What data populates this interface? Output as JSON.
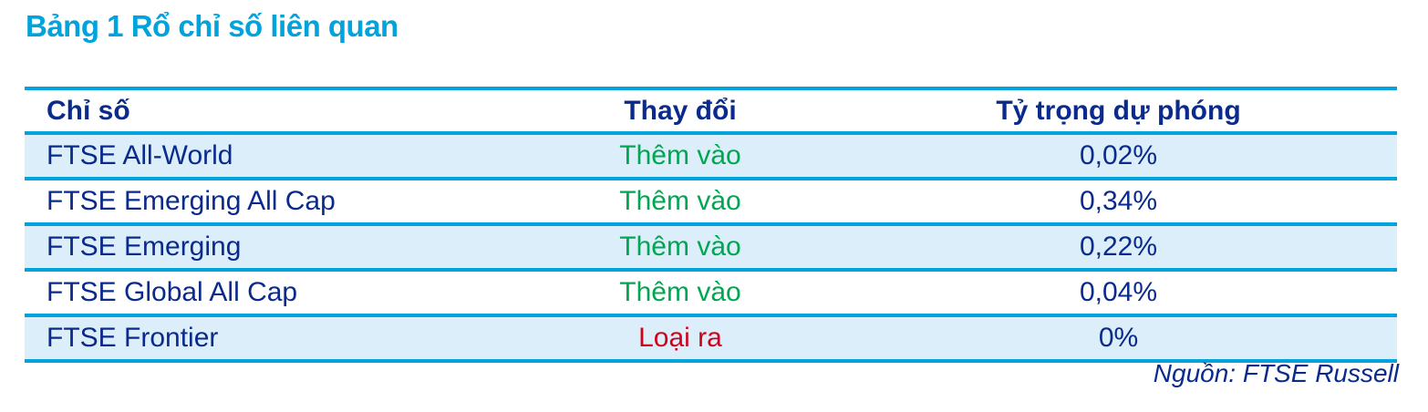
{
  "title": "Bảng 1 Rổ chỉ số liên quan",
  "table": {
    "headers": [
      "Chỉ số",
      "Thay đổi",
      "Tỷ trọng dự phóng"
    ],
    "rows": [
      {
        "index": "FTSE All-World",
        "change": "Thêm vào",
        "weight": "0,02%"
      },
      {
        "index": "FTSE Emerging All Cap",
        "change": "Thêm vào",
        "weight": "0,34%"
      },
      {
        "index": "FTSE Emerging",
        "change": "Thêm vào",
        "weight": "0,22%"
      },
      {
        "index": "FTSE Global All Cap",
        "change": "Thêm vào",
        "weight": "0,04%"
      },
      {
        "index": "FTSE Frontier",
        "change": "Loại ra",
        "weight": "0%"
      }
    ]
  },
  "source": "Nguồn: FTSE Russell",
  "colors": {
    "title": "#00a3dc",
    "text": "#0a2a8c",
    "added": "#00a651",
    "removed": "#d0021b",
    "row_shade": "#dbeefa",
    "rule": "#00a3dc"
  }
}
